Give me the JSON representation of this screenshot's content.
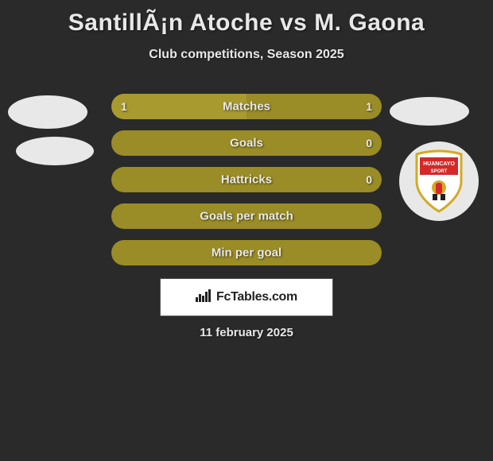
{
  "background_color": "#2a2a2a",
  "title": "SantillÃ¡n Atoche vs M. Gaona",
  "title_color": "#e8e8e8",
  "title_fontsize": 30,
  "subtitle": "Club competitions, Season 2025",
  "subtitle_color": "#e8e8e8",
  "subtitle_fontsize": 16,
  "player_left": {
    "name": "SantillÃ¡n Atoche",
    "color": "#a89a2e",
    "badges": [
      {
        "shape": "ellipse",
        "color": "#e8e8e8"
      },
      {
        "shape": "ellipse",
        "color": "#e8e8e8"
      }
    ]
  },
  "player_right": {
    "name": "M. Gaona",
    "color": "#9a8c26",
    "badges": [
      {
        "shape": "ellipse",
        "color": "#e8e8e8"
      },
      {
        "shape": "crest",
        "team": "Huancayo Sport",
        "crest_bg": "#e8e8e8",
        "crest_border": "#d4a926",
        "crest_red": "#d62828",
        "crest_white": "#ffffff"
      }
    ]
  },
  "stats": [
    {
      "label": "Matches",
      "left_val": "1",
      "right_val": "1",
      "left_pct": 50,
      "right_pct": 50,
      "left_color": "#a89a2e",
      "right_color": "#9a8c26"
    },
    {
      "label": "Goals",
      "left_val": "",
      "right_val": "0",
      "left_pct": 0,
      "right_pct": 100,
      "left_color": "#a89a2e",
      "right_color": "#9a8c26"
    },
    {
      "label": "Hattricks",
      "left_val": "",
      "right_val": "0",
      "left_pct": 0,
      "right_pct": 100,
      "left_color": "#a89a2e",
      "right_color": "#9a8c26"
    },
    {
      "label": "Goals per match",
      "left_val": "",
      "right_val": "",
      "left_pct": 0,
      "right_pct": 100,
      "left_color": "#a89a2e",
      "right_color": "#9a8c26"
    },
    {
      "label": "Min per goal",
      "left_val": "",
      "right_val": "",
      "left_pct": 0,
      "right_pct": 100,
      "left_color": "#a89a2e",
      "right_color": "#9a8c26"
    }
  ],
  "stat_bar": {
    "height": 32,
    "radius": 16,
    "spacing": 14,
    "label_color": "#e8e8e8",
    "label_fontsize": 15,
    "value_fontsize": 14
  },
  "watermark": {
    "text": "FcTables.com",
    "icon": "bar-chart",
    "box_bg": "#ffffff",
    "box_border": "#555555",
    "text_color": "#222222",
    "fontsize": 16
  },
  "date_text": "11 february 2025",
  "date_color": "#e8e8e8",
  "date_fontsize": 15
}
